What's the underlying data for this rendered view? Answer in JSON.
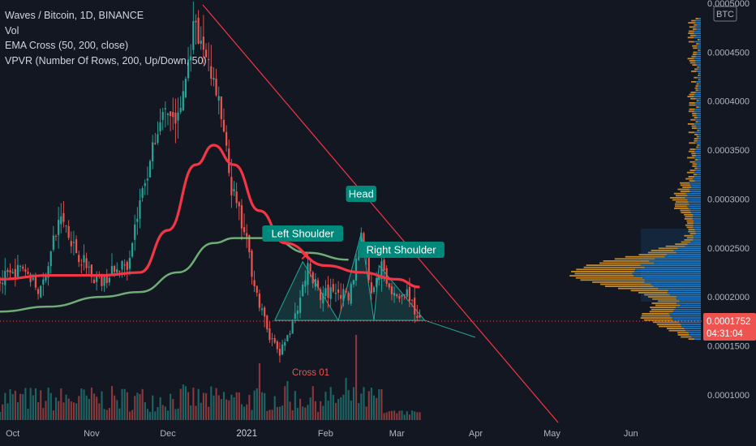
{
  "legend": {
    "title": "Waves / Bitcoin, 1D, BINANCE",
    "vol": "Vol",
    "ema": "EMA Cross (50, 200, close)",
    "vpvr": "VPVR (Number Of Rows, 200, Up/Down, 50)"
  },
  "currency": "BTC",
  "price_label": {
    "value": "0.0001752",
    "countdown": "04:31:04"
  },
  "annotations": {
    "head": "Head",
    "left_shoulder": "Left Shoulder",
    "right_shoulder": "Right Shoulder",
    "cross": "Cross 01"
  },
  "colors": {
    "background": "#131722",
    "up": "#26a69a",
    "down": "#ef5350",
    "ema_fast": "#f23645",
    "ema_slow": "#81c784",
    "trendline": "#f23645",
    "label_bg": "#00897b",
    "vpvr_up": "#2196f3",
    "vpvr_down": "#f5a623"
  },
  "chart_data": {
    "type": "candlestick",
    "symbol": "Waves / Bitcoin",
    "interval": "1D",
    "exchange": "BINANCE",
    "y_axis": {
      "ticks": [
        0.0001,
        0.00015,
        0.0002,
        0.00025,
        0.0003,
        0.00035,
        0.0004,
        0.00045,
        0.0005
      ],
      "tick_labels": [
        "0.0001000",
        "0.0001500",
        "0.0002000",
        "0.0002500",
        "0.0003000",
        "0.0003500",
        "0.0004000",
        "0.0004500",
        "0.0005000"
      ],
      "range": [
        7.25e-05,
        0.0005
      ]
    },
    "x_axis": {
      "tick_labels": [
        "Oct",
        "Nov",
        "Dec",
        "2021",
        "Feb",
        "Mar",
        "Apr",
        "May",
        "Jun"
      ],
      "bold_labels": [
        "2021"
      ]
    },
    "last_price": 0.0001752,
    "price_path": [
      {
        "date": "2020-09-26",
        "price": 0.000215
      },
      {
        "date": "2020-10-05",
        "price": 0.00023
      },
      {
        "date": "2020-10-12",
        "price": 0.000205
      },
      {
        "date": "2020-10-20",
        "price": 0.000285
      },
      {
        "date": "2020-10-27",
        "price": 0.00024
      },
      {
        "date": "2020-11-05",
        "price": 0.000215
      },
      {
        "date": "2020-11-15",
        "price": 0.000235
      },
      {
        "date": "2020-11-22",
        "price": 0.00032
      },
      {
        "date": "2020-11-29",
        "price": 0.00039
      },
      {
        "date": "2020-12-05",
        "price": 0.00038
      },
      {
        "date": "2020-12-11",
        "price": 0.000468
      },
      {
        "date": "2020-12-17",
        "price": 0.000445
      },
      {
        "date": "2020-12-22",
        "price": 0.00038
      },
      {
        "date": "2020-12-26",
        "price": 0.00031
      },
      {
        "date": "2021-01-01",
        "price": 0.000255
      },
      {
        "date": "2021-01-06",
        "price": 0.00019
      },
      {
        "date": "2021-01-10",
        "price": 0.00016
      },
      {
        "date": "2021-01-14",
        "price": 0.000142
      },
      {
        "date": "2021-01-20",
        "price": 0.00018
      },
      {
        "date": "2021-01-25",
        "price": 0.00023
      },
      {
        "date": "2021-01-30",
        "price": 0.0002
      },
      {
        "date": "2021-02-05",
        "price": 0.00021
      },
      {
        "date": "2021-02-10",
        "price": 0.000195
      },
      {
        "date": "2021-02-15",
        "price": 0.000265
      },
      {
        "date": "2021-02-19",
        "price": 0.000205
      },
      {
        "date": "2021-02-23",
        "price": 0.00023
      },
      {
        "date": "2021-02-28",
        "price": 0.0002
      },
      {
        "date": "2021-03-05",
        "price": 0.000205
      },
      {
        "date": "2021-03-10",
        "price": 0.0001752
      }
    ],
    "ema_50": [
      {
        "date": "2020-09-26",
        "value": 0.000218
      },
      {
        "date": "2020-10-15",
        "value": 0.000222
      },
      {
        "date": "2020-11-05",
        "value": 0.000222
      },
      {
        "date": "2020-11-20",
        "value": 0.000225
      },
      {
        "date": "2020-12-01",
        "value": 0.000268
      },
      {
        "date": "2020-12-12",
        "value": 0.000335
      },
      {
        "date": "2020-12-19",
        "value": 0.000355
      },
      {
        "date": "2020-12-27",
        "value": 0.000335
      },
      {
        "date": "2021-01-06",
        "value": 0.000288
      },
      {
        "date": "2021-01-16",
        "value": 0.000255
      },
      {
        "date": "2021-02-01",
        "value": 0.000232
      },
      {
        "date": "2021-02-15",
        "value": 0.000225
      },
      {
        "date": "2021-03-01",
        "value": 0.000218
      },
      {
        "date": "2021-03-10",
        "value": 0.00021
      }
    ],
    "ema_200": [
      {
        "date": "2020-09-26",
        "value": 0.000185
      },
      {
        "date": "2020-10-15",
        "value": 0.00019
      },
      {
        "date": "2020-11-05",
        "value": 0.0002
      },
      {
        "date": "2020-11-20",
        "value": 0.000205
      },
      {
        "date": "2020-12-05",
        "value": 0.000225
      },
      {
        "date": "2020-12-19",
        "value": 0.000255
      },
      {
        "date": "2020-12-27",
        "value": 0.00026
      },
      {
        "date": "2021-01-10",
        "value": 0.00026
      },
      {
        "date": "2021-01-25",
        "value": 0.000245
      },
      {
        "date": "2021-02-10",
        "value": 0.000238
      }
    ],
    "head_and_shoulders": {
      "left_shoulder": {
        "date": "2021-01-23",
        "price": 0.000236
      },
      "head": {
        "date": "2021-02-15",
        "price": 0.000265
      },
      "right_shoulder": {
        "date": "2021-02-22",
        "price": 0.000232
      },
      "neckline": 0.000175
    }
  }
}
